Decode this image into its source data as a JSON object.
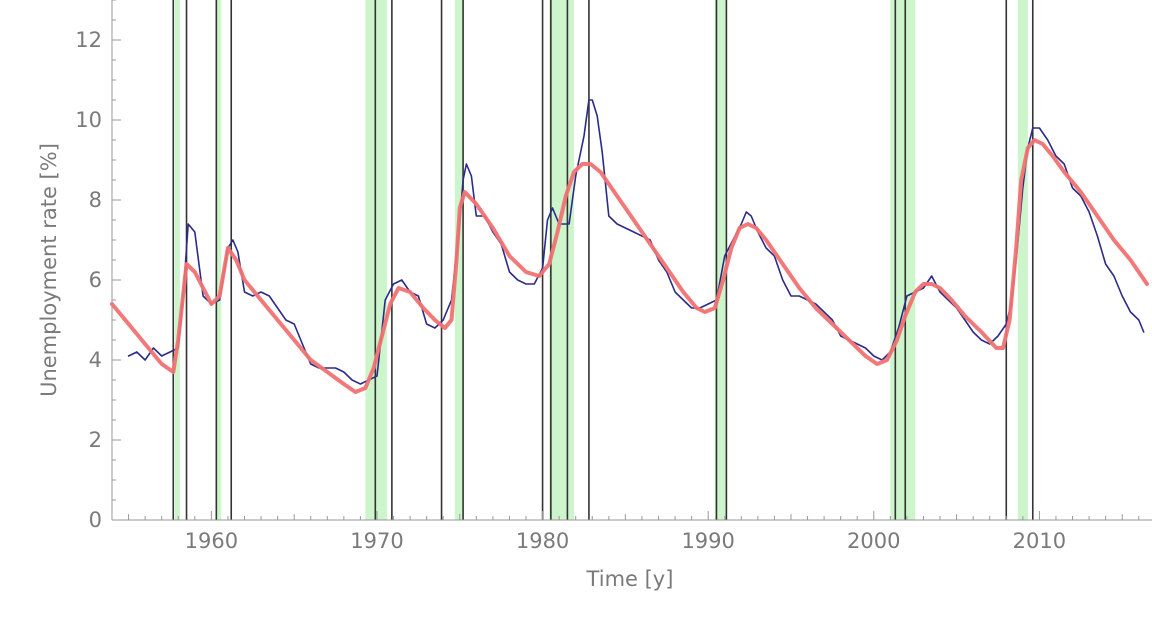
{
  "chart_data": {
    "type": "line",
    "title": "",
    "xlabel": "Time [y]",
    "ylabel": "Unemployment rate [%]",
    "xlim": [
      1954,
      2016.8
    ],
    "ylim": [
      0,
      13
    ],
    "x_ticks": [
      {
        "value": 1960,
        "label": "1960"
      },
      {
        "value": 1970,
        "label": "1970"
      },
      {
        "value": 1980,
        "label": "1980"
      },
      {
        "value": 1990,
        "label": "1990"
      },
      {
        "value": 2000,
        "label": "2000"
      },
      {
        "value": 2010,
        "label": "2010"
      }
    ],
    "y_ticks": [
      {
        "value": 0,
        "label": "0"
      },
      {
        "value": 2,
        "label": "2"
      },
      {
        "value": 4,
        "label": "4"
      },
      {
        "value": 6,
        "label": "6"
      },
      {
        "value": 8,
        "label": "8"
      },
      {
        "value": 10,
        "label": "10"
      },
      {
        "value": 12,
        "label": "12"
      }
    ],
    "grid": false,
    "legend": "none",
    "colors": {
      "observed": "#2b2b8a",
      "fit": "#f07272",
      "band": "#ccf5cc",
      "vline": "#333333",
      "axis": "#999999",
      "text": "#7a7a7a"
    },
    "shaded_bands": [
      [
        1957.8,
        1958.1
      ],
      [
        1960.3,
        1960.6
      ],
      [
        1969.3,
        1970.6
      ],
      [
        1974.7,
        1975.2
      ],
      [
        1980.4,
        1981.9
      ],
      [
        1990.4,
        1991.1
      ],
      [
        2001.0,
        2002.5
      ],
      [
        2008.7,
        2009.3
      ]
    ],
    "vertical_lines": [
      1957.7,
      1958.5,
      1960.3,
      1961.2,
      1969.9,
      1970.9,
      1973.9,
      1975.2,
      1980.0,
      1980.5,
      1981.5,
      1982.8,
      1990.5,
      1991.1,
      2001.3,
      2001.9,
      2008.0,
      2009.6
    ],
    "series": [
      {
        "role": "observed",
        "x": [
          1955.0,
          1955.5,
          1956.0,
          1956.5,
          1957.0,
          1957.5,
          1958.0,
          1958.3,
          1958.6,
          1959.0,
          1959.5,
          1960.0,
          1960.5,
          1961.0,
          1961.3,
          1961.6,
          1962.0,
          1962.5,
          1963.0,
          1963.5,
          1964.0,
          1964.5,
          1965.0,
          1965.5,
          1966.0,
          1966.5,
          1967.0,
          1967.5,
          1968.0,
          1968.5,
          1969.0,
          1969.5,
          1970.0,
          1970.5,
          1971.0,
          1971.5,
          1972.0,
          1972.5,
          1973.0,
          1973.5,
          1974.0,
          1974.5,
          1974.9,
          1975.2,
          1975.4,
          1975.7,
          1976.0,
          1976.5,
          1977.0,
          1977.5,
          1978.0,
          1978.5,
          1979.0,
          1979.5,
          1980.0,
          1980.3,
          1980.6,
          1981.0,
          1981.3,
          1981.6,
          1982.0,
          1982.5,
          1982.8,
          1983.0,
          1983.3,
          1983.6,
          1984.0,
          1984.5,
          1985.0,
          1985.5,
          1986.0,
          1986.5,
          1987.0,
          1987.5,
          1988.0,
          1988.5,
          1989.0,
          1989.5,
          1990.0,
          1990.5,
          1991.0,
          1991.5,
          1992.0,
          1992.3,
          1992.6,
          1993.0,
          1993.5,
          1994.0,
          1994.5,
          1995.0,
          1995.5,
          1996.0,
          1996.5,
          1997.0,
          1997.5,
          1998.0,
          1998.5,
          1999.0,
          1999.5,
          2000.0,
          2000.5,
          2001.0,
          2001.5,
          2002.0,
          2002.5,
          2003.0,
          2003.5,
          2004.0,
          2004.5,
          2005.0,
          2005.5,
          2006.0,
          2006.5,
          2007.0,
          2007.5,
          2008.0,
          2008.3,
          2008.6,
          2009.0,
          2009.3,
          2009.6,
          2010.0,
          2010.5,
          2011.0,
          2011.5,
          2012.0,
          2012.5,
          2013.0,
          2013.5,
          2014.0,
          2014.5,
          2015.0,
          2015.5,
          2016.0,
          2016.3
        ],
        "y": [
          4.1,
          4.2,
          4.0,
          4.3,
          4.1,
          4.2,
          4.3,
          5.6,
          7.4,
          7.2,
          5.6,
          5.4,
          5.5,
          6.8,
          7.0,
          6.7,
          5.7,
          5.6,
          5.7,
          5.6,
          5.3,
          5.0,
          4.9,
          4.4,
          3.9,
          3.8,
          3.8,
          3.8,
          3.7,
          3.5,
          3.4,
          3.5,
          3.6,
          5.5,
          5.9,
          6.0,
          5.7,
          5.6,
          4.9,
          4.8,
          5.0,
          5.5,
          7.0,
          8.5,
          8.9,
          8.6,
          7.6,
          7.6,
          7.2,
          6.9,
          6.2,
          6.0,
          5.9,
          5.9,
          6.3,
          7.5,
          7.8,
          7.4,
          7.4,
          7.4,
          8.6,
          9.6,
          10.5,
          10.5,
          10.1,
          9.2,
          7.6,
          7.4,
          7.3,
          7.2,
          7.1,
          7.0,
          6.5,
          6.2,
          5.7,
          5.5,
          5.3,
          5.3,
          5.4,
          5.5,
          6.6,
          7.0,
          7.4,
          7.7,
          7.6,
          7.2,
          6.8,
          6.6,
          6.0,
          5.6,
          5.6,
          5.5,
          5.4,
          5.2,
          5.0,
          4.6,
          4.5,
          4.4,
          4.3,
          4.1,
          4.0,
          4.2,
          4.8,
          5.6,
          5.7,
          5.8,
          6.1,
          5.7,
          5.5,
          5.3,
          5.0,
          4.7,
          4.5,
          4.4,
          4.6,
          4.9,
          5.4,
          6.5,
          8.3,
          9.3,
          9.8,
          9.8,
          9.5,
          9.1,
          8.9,
          8.3,
          8.1,
          7.7,
          7.1,
          6.4,
          6.1,
          5.6,
          5.2,
          5.0,
          4.7
        ]
      },
      {
        "role": "fit",
        "x": [
          1954.0,
          1955.0,
          1956.0,
          1957.0,
          1957.7,
          1958.0,
          1958.5,
          1959.0,
          1959.5,
          1960.0,
          1960.5,
          1961.0,
          1961.5,
          1962.0,
          1963.0,
          1964.0,
          1965.0,
          1966.0,
          1967.0,
          1968.0,
          1968.7,
          1969.3,
          1969.8,
          1970.3,
          1970.8,
          1971.3,
          1972.0,
          1972.8,
          1973.5,
          1974.1,
          1974.5,
          1974.8,
          1975.0,
          1975.3,
          1976.0,
          1977.0,
          1978.0,
          1979.0,
          1979.8,
          1980.4,
          1980.9,
          1981.4,
          1981.9,
          1982.4,
          1982.9,
          1983.5,
          1984.5,
          1985.5,
          1986.5,
          1987.5,
          1988.5,
          1989.3,
          1989.8,
          1990.4,
          1990.9,
          1991.4,
          1991.9,
          1992.4,
          1992.9,
          1993.5,
          1994.5,
          1995.5,
          1996.5,
          1997.5,
          1998.5,
          1999.5,
          2000.2,
          2000.8,
          2001.4,
          2001.9,
          2002.5,
          2003.0,
          2003.5,
          2004.0,
          2004.7,
          2005.5,
          2006.5,
          2007.4,
          2007.8,
          2008.2,
          2008.6,
          2008.9,
          2009.3,
          2009.7,
          2010.2,
          2010.8,
          2011.5,
          2012.5,
          2013.5,
          2014.5,
          2015.5,
          2016.5
        ],
        "y": [
          5.4,
          4.9,
          4.4,
          3.9,
          3.7,
          4.5,
          6.4,
          6.2,
          5.8,
          5.4,
          5.6,
          6.8,
          6.5,
          6.0,
          5.5,
          5.0,
          4.5,
          4.0,
          3.7,
          3.4,
          3.2,
          3.3,
          3.8,
          4.6,
          5.4,
          5.8,
          5.7,
          5.3,
          5.0,
          4.8,
          5.0,
          6.5,
          7.8,
          8.2,
          7.9,
          7.3,
          6.6,
          6.2,
          6.1,
          6.4,
          7.2,
          8.1,
          8.7,
          8.9,
          8.9,
          8.7,
          8.1,
          7.5,
          6.9,
          6.3,
          5.7,
          5.3,
          5.2,
          5.3,
          6.0,
          6.8,
          7.3,
          7.4,
          7.3,
          7.0,
          6.4,
          5.8,
          5.3,
          4.9,
          4.5,
          4.1,
          3.9,
          4.0,
          4.5,
          5.1,
          5.7,
          5.9,
          5.9,
          5.8,
          5.5,
          5.1,
          4.7,
          4.3,
          4.3,
          5.0,
          6.8,
          8.5,
          9.3,
          9.5,
          9.4,
          9.1,
          8.7,
          8.2,
          7.6,
          7.0,
          6.5,
          5.9
        ]
      }
    ]
  }
}
